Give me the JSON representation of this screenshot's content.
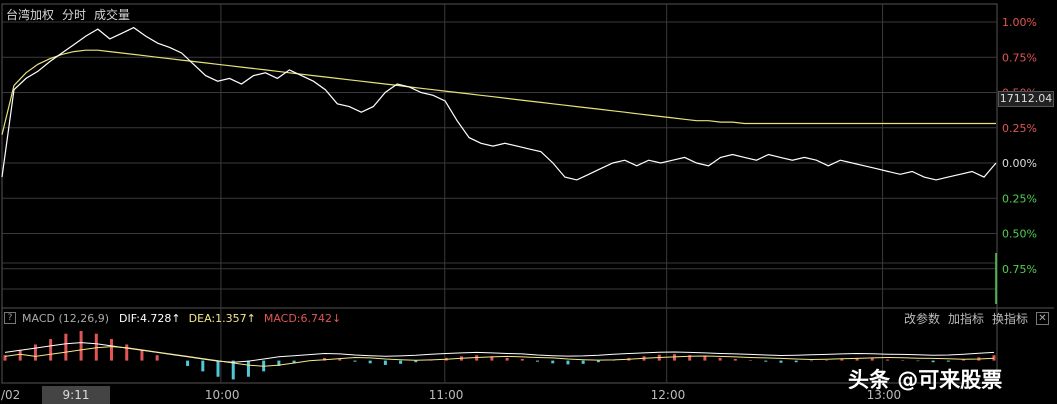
{
  "header": {
    "title": "台湾加权",
    "tab_time": "分时",
    "tab_volume": "成交量"
  },
  "chart_data": {
    "type": "line",
    "ylabels_right": [
      {
        "text": "1.00%",
        "pct": 1.0,
        "color": "#e05555"
      },
      {
        "text": "0.75%",
        "pct": 0.75,
        "color": "#e05555"
      },
      {
        "text": "0.50%",
        "pct": 0.5,
        "color": "#e05555"
      },
      {
        "text": "0.25%",
        "pct": 0.25,
        "color": "#e05555"
      },
      {
        "text": "0.00%",
        "pct": 0.0,
        "color": "#dddddd"
      },
      {
        "text": "0.25%",
        "pct": -0.25,
        "color": "#4fd14f"
      },
      {
        "text": "0.50%",
        "pct": -0.5,
        "color": "#4fd14f"
      },
      {
        "text": "0.75%",
        "pct": -0.75,
        "color": "#4fd14f"
      }
    ],
    "current_price_label": "17112.04",
    "current_price_pct": 0.28,
    "ylim_pct": [
      -1.0,
      1.0
    ],
    "price_series": {
      "color": "#ffffff",
      "pct": [
        -0.1,
        0.52,
        0.6,
        0.65,
        0.72,
        0.78,
        0.84,
        0.9,
        0.95,
        0.88,
        0.92,
        0.96,
        0.9,
        0.85,
        0.82,
        0.78,
        0.7,
        0.62,
        0.58,
        0.6,
        0.56,
        0.62,
        0.64,
        0.6,
        0.66,
        0.62,
        0.58,
        0.52,
        0.42,
        0.4,
        0.36,
        0.4,
        0.5,
        0.56,
        0.54,
        0.5,
        0.48,
        0.44,
        0.3,
        0.18,
        0.14,
        0.12,
        0.14,
        0.12,
        0.1,
        0.08,
        0.0,
        -0.1,
        -0.12,
        -0.08,
        -0.04,
        0.0,
        0.02,
        -0.02,
        0.02,
        0.0,
        0.02,
        0.04,
        0.0,
        -0.02,
        0.04,
        0.06,
        0.04,
        0.02,
        0.06,
        0.04,
        0.02,
        0.04,
        0.02,
        -0.02,
        0.02,
        0.0,
        -0.02,
        -0.04,
        -0.06,
        -0.08,
        -0.06,
        -0.1,
        -0.12,
        -0.1,
        -0.08,
        -0.06,
        -0.1,
        0.0
      ]
    },
    "avg_series": {
      "color": "#e8e07a",
      "pct": [
        0.2,
        0.55,
        0.64,
        0.7,
        0.74,
        0.77,
        0.79,
        0.8,
        0.8,
        0.79,
        0.78,
        0.77,
        0.76,
        0.75,
        0.74,
        0.73,
        0.72,
        0.71,
        0.7,
        0.69,
        0.68,
        0.67,
        0.66,
        0.65,
        0.64,
        0.63,
        0.62,
        0.61,
        0.6,
        0.59,
        0.58,
        0.57,
        0.56,
        0.55,
        0.54,
        0.53,
        0.52,
        0.51,
        0.5,
        0.49,
        0.48,
        0.47,
        0.46,
        0.45,
        0.44,
        0.43,
        0.42,
        0.41,
        0.4,
        0.39,
        0.38,
        0.37,
        0.36,
        0.35,
        0.34,
        0.33,
        0.32,
        0.31,
        0.3,
        0.3,
        0.29,
        0.29,
        0.28,
        0.28,
        0.28,
        0.28,
        0.28,
        0.28,
        0.28,
        0.28,
        0.28,
        0.28,
        0.28,
        0.28,
        0.28,
        0.28,
        0.28,
        0.28,
        0.28,
        0.28,
        0.28,
        0.28,
        0.28,
        0.28
      ]
    },
    "macd": {
      "title": "MACD (12,26,9)",
      "dif_label": "DIF:4.728↑",
      "dea_label": "DEA:1.357↑",
      "macd_label": "MACD:6.742↓",
      "bars": [
        1,
        2,
        3,
        4,
        5,
        5.5,
        5,
        4,
        3,
        2,
        1,
        0,
        -1,
        -2,
        -3,
        -3.5,
        -3,
        -2,
        -1,
        -0.5,
        0,
        0.5,
        0.3,
        -0.2,
        -0.5,
        -0.8,
        -0.6,
        -0.3,
        0.2,
        0.5,
        0.8,
        1,
        0.8,
        0.5,
        0.3,
        -0.2,
        -0.5,
        -0.7,
        -0.6,
        -0.3,
        0.2,
        0.5,
        0.8,
        1.1,
        1.2,
        1,
        0.8,
        0.5,
        0.3,
        0.1,
        -0.2,
        -0.4,
        -0.3,
        -0.1,
        0.1,
        0.3,
        0.5,
        0.4,
        0.2,
        0.1,
        -0.1,
        -0.3,
        -0.2,
        0.2,
        0.6,
        1.0
      ]
    },
    "xlabels": [
      {
        "text": "/02",
        "pos": 0.002
      },
      {
        "text": "10:00",
        "pos": 0.22
      },
      {
        "text": "11:00",
        "pos": 0.445
      },
      {
        "text": "12:00",
        "pos": 0.668
      },
      {
        "text": "13:00",
        "pos": 0.885
      }
    ],
    "cursor_time": "9:11"
  },
  "toolbar": {
    "change_params": "改参数",
    "add_indicator": "加指标",
    "switch_indicator": "换指标",
    "close": "✕"
  },
  "watermark": "头条 @可来股票",
  "colors": {
    "bg": "#000000",
    "grid": "#3a3a3a",
    "up": "#e05555",
    "down": "#4fd14f"
  }
}
